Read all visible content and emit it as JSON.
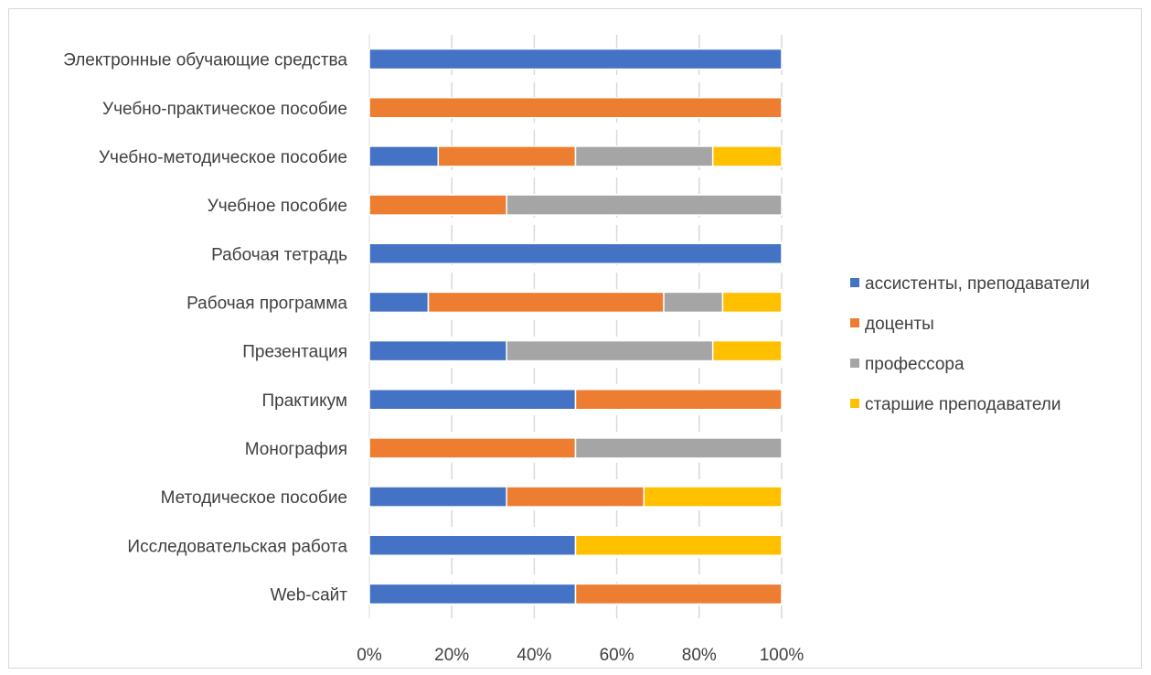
{
  "chart_data": {
    "type": "bar",
    "orientation": "horizontal",
    "stacked": "percent",
    "title": "",
    "xlabel": "",
    "ylabel": "",
    "xlim": [
      0,
      100
    ],
    "x_ticks": [
      "0%",
      "20%",
      "40%",
      "60%",
      "80%",
      "100%"
    ],
    "grid": true,
    "legend_position": "right",
    "categories": [
      "Электронные обучающие средства",
      "Учебно-практическое пособие",
      "Учебно-методическое пособие",
      "Учебное пособие",
      "Рабочая тетрадь",
      "Рабочая программа",
      "Презентация",
      "Практикум",
      "Монография",
      "Методическое пособие",
      "Исследовательская работа",
      "Web-сайт"
    ],
    "series": [
      {
        "name": "ассистенты, преподаватели",
        "color": "#4472C4",
        "values": [
          100,
          0,
          16.7,
          0,
          100,
          14.3,
          33.3,
          50,
          0,
          33.3,
          50,
          50
        ]
      },
      {
        "name": "доценты",
        "color": "#ED7D31",
        "values": [
          0,
          100,
          33.3,
          33.3,
          0,
          57.1,
          0,
          50,
          50,
          33.3,
          0,
          50
        ]
      },
      {
        "name": "профессора",
        "color": "#A5A5A5",
        "values": [
          0,
          0,
          33.3,
          66.7,
          0,
          14.3,
          50,
          0,
          50,
          0,
          0,
          0
        ]
      },
      {
        "name": "старшие преподаватели",
        "color": "#FFC000",
        "values": [
          0,
          0,
          16.7,
          0,
          0,
          14.3,
          16.7,
          0,
          0,
          33.4,
          50,
          0
        ]
      }
    ]
  }
}
